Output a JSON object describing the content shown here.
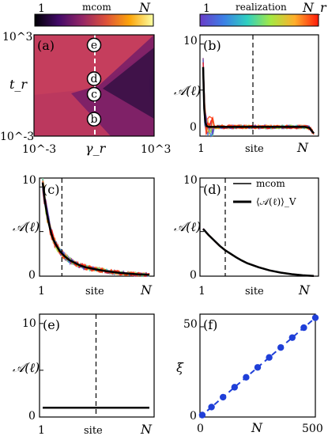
{
  "colorbars": [
    {
      "left": "1",
      "title": "mcom",
      "right": "N",
      "colormap": "inferno"
    },
    {
      "left": "1",
      "title": "realization",
      "right": "N_r",
      "colormap": "rainbow"
    }
  ],
  "panel_labels": [
    "(a)",
    "(b)",
    "(c)",
    "(d)",
    "(e)",
    "(f)"
  ],
  "markers": [
    "e",
    "d",
    "c",
    "b"
  ],
  "legend": [
    "mcom",
    "⟨𝒜(ℓ)⟩_V"
  ],
  "site_label": "site",
  "chart_data": [
    {
      "panel": "a",
      "type": "heatmap",
      "xlabel": "γ_r",
      "ylabel": "t_r",
      "xscale": "log",
      "yscale": "log",
      "xlim": [
        0.001,
        1000
      ],
      "ylim": [
        0.001,
        1000
      ],
      "xtick_labels": [
        "10^-3",
        "10^3"
      ],
      "ytick_labels": [
        "10^-3",
        "10^3"
      ],
      "dashed_vline_at": 1,
      "marker_points": [
        {
          "label": "e",
          "t_r": 250
        },
        {
          "label": "d",
          "t_r": 2.5
        },
        {
          "label": "c",
          "t_r": 0.3
        },
        {
          "label": "b",
          "t_r": 0.01
        }
      ]
    },
    {
      "panel": "b",
      "type": "line",
      "ylabel": "𝒜(ℓ)",
      "xtick_labels": [
        "1",
        "N"
      ],
      "ytick_labels": [
        "0",
        "10"
      ],
      "ylim": [
        0,
        11
      ],
      "x": [
        0,
        0.01,
        0.02,
        0.03,
        0.05,
        0.08,
        0.12,
        0.2,
        0.3,
        0.4,
        0.5,
        0.6,
        0.7,
        0.8,
        0.88,
        0.92,
        0.96,
        1
      ],
      "mean_values": [
        7.5,
        3.0,
        1.5,
        1.1,
        1.0,
        1.0,
        1.0,
        1.0,
        1.0,
        1.0,
        1.0,
        1.0,
        1.0,
        1.0,
        1.0,
        1.0,
        0.9,
        0.3
      ],
      "dashed_vline_at": 0.45
    },
    {
      "panel": "c",
      "type": "line",
      "ylabel": "𝒜(ℓ)",
      "xtick_labels": [
        "1",
        "N"
      ],
      "ytick_labels": [
        "0",
        "10"
      ],
      "ylim": [
        0,
        11
      ],
      "x": [
        0,
        0.02,
        0.04,
        0.06,
        0.08,
        0.1,
        0.13,
        0.16,
        0.2,
        0.25,
        0.3,
        0.35,
        0.4,
        0.5,
        0.6,
        0.7,
        0.8,
        0.9,
        1
      ],
      "mean_values": [
        10.5,
        8.5,
        7.0,
        5.8,
        4.8,
        4.1,
        3.4,
        2.8,
        2.3,
        1.8,
        1.5,
        1.2,
        1.0,
        0.75,
        0.55,
        0.4,
        0.28,
        0.2,
        0.15
      ],
      "dashed_vline_at": 0.18
    },
    {
      "panel": "d",
      "type": "line",
      "ylabel": "𝒜(ℓ)",
      "xtick_labels": [
        "1",
        "N"
      ],
      "ytick_labels": [
        "0",
        "10"
      ],
      "ylim": [
        0,
        11
      ],
      "x": [
        0,
        0.05,
        0.1,
        0.15,
        0.2,
        0.25,
        0.3,
        0.35,
        0.4,
        0.5,
        0.6,
        0.7,
        0.8,
        0.9,
        1
      ],
      "mean_values": [
        5.3,
        4.6,
        4.0,
        3.4,
        2.9,
        2.5,
        2.1,
        1.75,
        1.45,
        1.0,
        0.65,
        0.4,
        0.22,
        0.1,
        0.03
      ],
      "dashed_vline_at": 0.2
    },
    {
      "panel": "e",
      "type": "line",
      "ylabel": "𝒜(ℓ)",
      "xtick_labels": [
        "1",
        "N"
      ],
      "ytick_labels": [
        "0",
        "10"
      ],
      "ylim": [
        0,
        11
      ],
      "x": [
        0,
        1
      ],
      "mean_values": [
        1.0,
        1.0
      ],
      "dashed_vline_at": 0.5
    },
    {
      "panel": "f",
      "type": "scatter",
      "xlabel": "N",
      "ylabel": "ξ",
      "xlim": [
        0,
        500
      ],
      "ylim": [
        0,
        57
      ],
      "xtick_labels": [
        "0",
        "500"
      ],
      "ytick_labels": [
        "0",
        "50"
      ],
      "x": [
        10,
        50,
        100,
        150,
        200,
        250,
        300,
        350,
        400,
        450,
        500
      ],
      "y": [
        1.1,
        5.5,
        11,
        16.5,
        22,
        27.5,
        33,
        38.5,
        44,
        49.5,
        55
      ],
      "fit_slope": 0.11
    }
  ]
}
